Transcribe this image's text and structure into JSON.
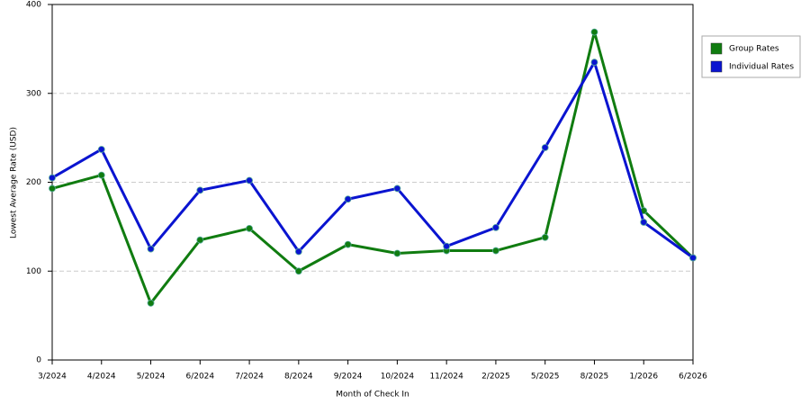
{
  "chart_data": {
    "type": "line",
    "x_label": "Month of Check In",
    "y_label": "Lowest Average Rate (USD)",
    "categories": [
      "3/2024",
      "4/2024",
      "5/2024",
      "6/2024",
      "7/2024",
      "8/2024",
      "9/2024",
      "10/2024",
      "11/2024",
      "2/2025",
      "5/2025",
      "8/2025",
      "1/2026",
      "6/2026"
    ],
    "series": [
      {
        "name": "Group Rates",
        "color": "#107c10",
        "values": [
          193,
          208,
          64,
          135,
          148,
          100,
          130,
          120,
          123,
          123,
          138,
          369,
          168,
          115
        ]
      },
      {
        "name": "Individual Rates",
        "color": "#0a14d0",
        "values": [
          205,
          237,
          125,
          191,
          202,
          122,
          181,
          193,
          128,
          149,
          239,
          335,
          155,
          115
        ]
      }
    ],
    "ylim": [
      0,
      400
    ],
    "yticks": [
      0,
      100,
      200,
      300,
      400
    ],
    "grid": true,
    "legend": "right"
  }
}
